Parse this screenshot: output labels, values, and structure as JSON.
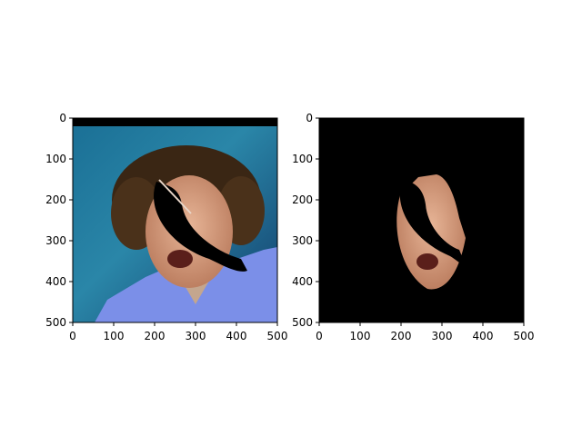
{
  "chart_data": [
    {
      "type": "image",
      "title": "",
      "xlabel": "",
      "ylabel": "",
      "xlim": [
        0,
        500
      ],
      "ylim": [
        500,
        0
      ],
      "xticks": [
        0,
        100,
        200,
        300,
        400,
        500
      ],
      "yticks": [
        0,
        100,
        200,
        300,
        400,
        500
      ],
      "grid": false,
      "content": "photo of curly-haired man on blue background with black crescent occlusion over face"
    },
    {
      "type": "image",
      "title": "",
      "xlabel": "",
      "ylabel": "",
      "xlim": [
        0,
        500
      ],
      "ylim": [
        500,
        0
      ],
      "xticks": [
        0,
        100,
        200,
        300,
        400,
        500
      ],
      "yticks": [
        0,
        100,
        200,
        300,
        400,
        500
      ],
      "grid": false,
      "content": "segmented face region on black background with same occlusion"
    }
  ],
  "colors": {
    "background_blue": "#1e6e9a",
    "hair": "#3a2614",
    "skin": "#d9a184",
    "shirt": "#7b8fe8",
    "mask": "#000000"
  }
}
